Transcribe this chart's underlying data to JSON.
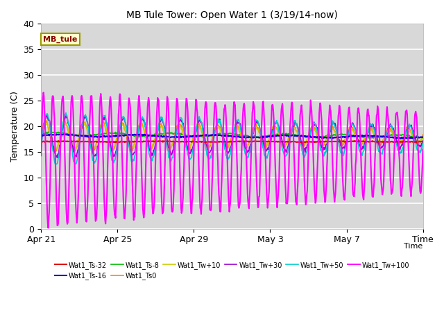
{
  "title": "MB Tule Tower: Open Water 1 (3/19/14-now)",
  "xlabel": "Time",
  "ylabel": "Temperature (C)",
  "ylim": [
    0,
    40
  ],
  "yticks": [
    0,
    5,
    10,
    15,
    20,
    25,
    30,
    35,
    40
  ],
  "background_color": "#d8d8d8",
  "series": {
    "Wat1_Ts-32": {
      "color": "#dd0000",
      "lw": 1.5,
      "zorder": 5
    },
    "Wat1_Ts-16": {
      "color": "#0000cc",
      "lw": 1.5,
      "zorder": 5
    },
    "Wat1_Ts-8": {
      "color": "#00bb00",
      "lw": 1.2,
      "zorder": 4
    },
    "Wat1_Ts0": {
      "color": "#ff8800",
      "lw": 1.2,
      "zorder": 4
    },
    "Wat1_Tw+10": {
      "color": "#cccc00",
      "lw": 1.2,
      "zorder": 4
    },
    "Wat1_Tw+30": {
      "color": "#9900cc",
      "lw": 1.2,
      "zorder": 4
    },
    "Wat1_Tw+50": {
      "color": "#00cccc",
      "lw": 1.2,
      "zorder": 4
    },
    "Wat1_Tw+100": {
      "color": "#ff00ff",
      "lw": 1.5,
      "zorder": 6
    }
  },
  "xtick_labels": [
    "Apr 21",
    "Apr 25",
    "Apr 29",
    "May 3",
    "May 7",
    "Time"
  ],
  "num_points": 800,
  "num_days": 20
}
